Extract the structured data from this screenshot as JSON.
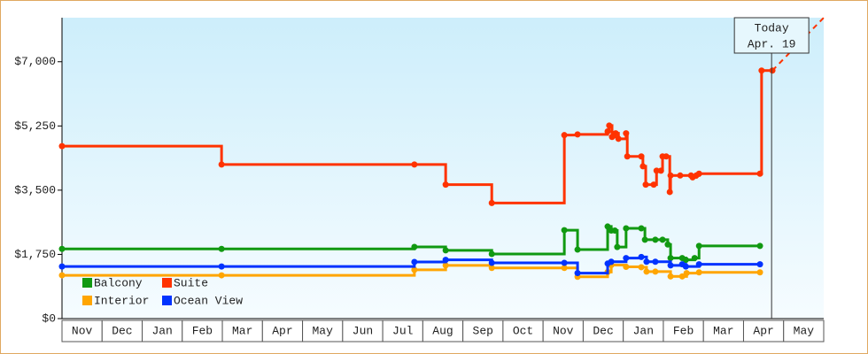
{
  "chart_data": {
    "type": "step",
    "categories": [
      "Nov",
      "Dec",
      "Jan",
      "Feb",
      "Mar",
      "Apr",
      "May",
      "Jun",
      "Jul",
      "Aug",
      "Sep",
      "Oct",
      "Nov",
      "Dec",
      "Jan",
      "Feb",
      "Mar",
      "Apr",
      "May"
    ],
    "xlim": [
      0,
      19
    ],
    "ylim": [
      0,
      8200
    ],
    "yticks": [
      {
        "value": 0,
        "label": "$0"
      },
      {
        "value": 1750,
        "label": "$1,750"
      },
      {
        "value": 3500,
        "label": "$3,500"
      },
      {
        "value": 5250,
        "label": "$5,250"
      },
      {
        "value": 7000,
        "label": "$7,000"
      }
    ],
    "grid": false,
    "legend": "lower left",
    "today_label": "Today",
    "today_date": "Apr. 19",
    "today_x": 17.7,
    "series": [
      {
        "name": "Balcony",
        "color": "#119911",
        "x": [
          0,
          3.98,
          8.79,
          9.57,
          10.72,
          12.53,
          12.86,
          13.61,
          13.7,
          13.79,
          13.85,
          14.07,
          14.45,
          14.54,
          14.8,
          14.98,
          15.11,
          15.18,
          15.47,
          15.56,
          15.78,
          15.89,
          17.41
        ],
        "values": [
          1900,
          1900,
          1955,
          1860,
          1760,
          2410,
          1880,
          2510,
          2400,
          2400,
          1950,
          2460,
          2460,
          2150,
          2150,
          2150,
          2020,
          1650,
          1650,
          1600,
          1650,
          1980,
          1980
        ]
      },
      {
        "name": "Suite",
        "color": "#ff3300",
        "x": [
          0,
          3.98,
          8.79,
          9.57,
          10.72,
          12.53,
          12.86,
          13.61,
          13.65,
          13.72,
          13.81,
          13.88,
          14.07,
          14.1,
          14.45,
          14.49,
          14.56,
          14.76,
          14.83,
          14.94,
          14.98,
          15.07,
          15.16,
          15.18,
          15.42,
          15.69,
          15.73,
          15.82,
          15.89,
          17.41,
          17.45,
          17.72
        ],
        "values": [
          4700,
          4200,
          4200,
          3650,
          3150,
          5000,
          5020,
          5100,
          5260,
          4950,
          5050,
          4900,
          5050,
          4420,
          4420,
          4150,
          3650,
          3650,
          4030,
          4030,
          4420,
          4420,
          3450,
          3900,
          3900,
          3900,
          3850,
          3900,
          3950,
          3950,
          6760,
          6760
        ]
      },
      {
        "name": "Interior",
        "color": "#ffa500",
        "x": [
          0,
          3.98,
          8.79,
          9.57,
          10.72,
          12.53,
          12.86,
          13.61,
          13.7,
          14.07,
          14.45,
          14.58,
          14.8,
          15.18,
          15.47,
          15.58,
          15.89,
          17.41
        ],
        "values": [
          1180,
          1180,
          1330,
          1450,
          1380,
          1380,
          1140,
          1270,
          1460,
          1410,
          1400,
          1280,
          1280,
          1150,
          1150,
          1240,
          1260,
          1260
        ]
      },
      {
        "name": "Ocean View",
        "color": "#0033ff",
        "x": [
          0,
          3.98,
          8.79,
          9.57,
          10.72,
          12.53,
          12.86,
          13.61,
          13.7,
          14.07,
          14.45,
          14.58,
          14.8,
          15.18,
          15.47,
          15.56,
          15.89,
          17.41
        ],
        "values": [
          1420,
          1420,
          1545,
          1600,
          1520,
          1520,
          1240,
          1500,
          1550,
          1650,
          1680,
          1550,
          1550,
          1450,
          1480,
          1420,
          1480,
          1480
        ]
      }
    ]
  }
}
